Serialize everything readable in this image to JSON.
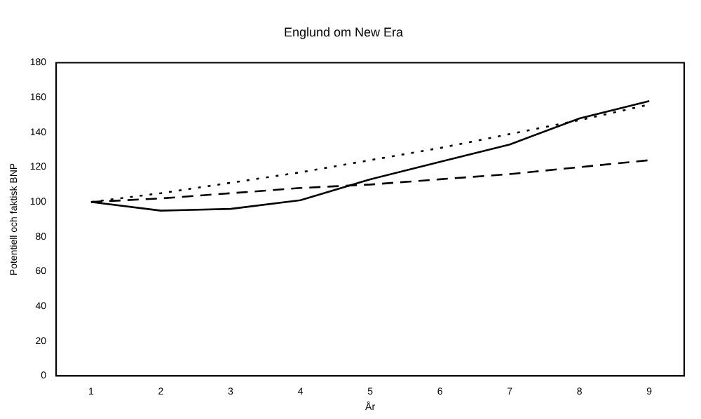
{
  "chart_data": {
    "type": "line",
    "title": "Englund om New Era",
    "xlabel": "År",
    "ylabel": "Potentiell och faktisk BNP",
    "categories": [
      "1",
      "2",
      "3",
      "4",
      "5",
      "6",
      "7",
      "8",
      "9"
    ],
    "series": [
      {
        "color": "#000000",
        "line_style": "solid",
        "values": [
          100,
          95,
          96,
          101,
          113,
          123,
          133,
          148,
          158
        ]
      },
      {
        "color": "#000000",
        "line_style": "dashed",
        "values": [
          100,
          102,
          105,
          108,
          110,
          113,
          116,
          120,
          124
        ]
      },
      {
        "color": "#000000",
        "line_style": "dotted",
        "values": [
          100,
          105,
          111,
          117,
          124,
          131,
          139,
          147,
          156
        ]
      }
    ],
    "ylim": [
      0,
      180
    ],
    "yticks": [
      0,
      20,
      40,
      60,
      80,
      100,
      120,
      140,
      160,
      180
    ],
    "grid": false,
    "legend": false,
    "marker": "none"
  }
}
